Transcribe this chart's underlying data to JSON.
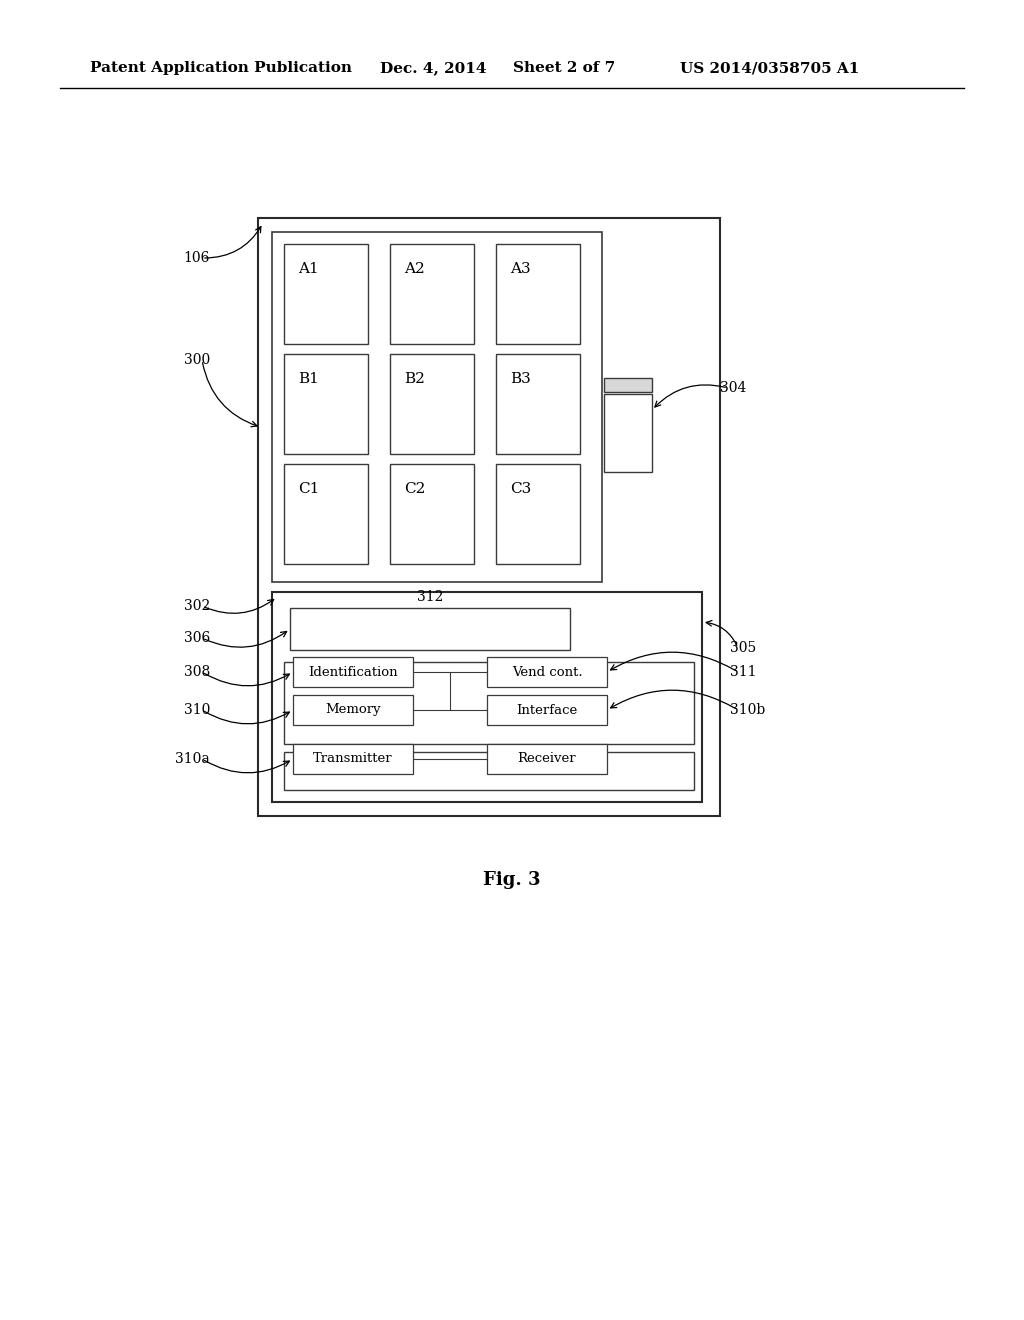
{
  "bg_color": "#ffffff",
  "header_text": "Patent Application Publication",
  "header_date": "Dec. 4, 2014",
  "header_sheet": "Sheet 2 of 7",
  "header_patent": "US 2014/0358705 A1",
  "fig_label": "Fig. 3",
  "product_cells": [
    {
      "label": "A1",
      "col": 0,
      "row": 0
    },
    {
      "label": "A2",
      "col": 1,
      "row": 0
    },
    {
      "label": "A3",
      "col": 2,
      "row": 0
    },
    {
      "label": "B1",
      "col": 0,
      "row": 1
    },
    {
      "label": "B2",
      "col": 1,
      "row": 1
    },
    {
      "label": "B3",
      "col": 2,
      "row": 1
    },
    {
      "label": "C1",
      "col": 0,
      "row": 2
    },
    {
      "label": "C2",
      "col": 1,
      "row": 2
    },
    {
      "label": "C3",
      "col": 2,
      "row": 2
    }
  ],
  "component_rows": [
    {
      "left_label": "Identification",
      "right_label": "Vend cont."
    },
    {
      "left_label": "Memory",
      "right_label": "Interface"
    },
    {
      "left_label": "Transmitter",
      "right_label": "Receiver"
    }
  ]
}
